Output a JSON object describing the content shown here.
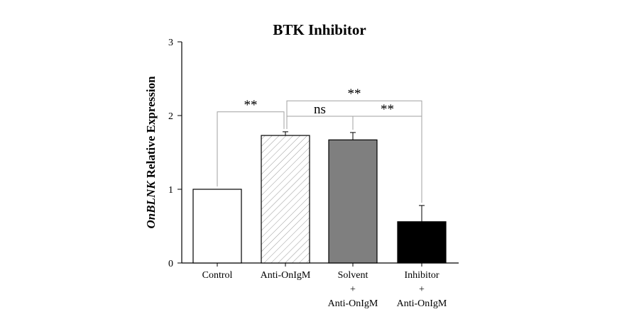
{
  "chart_data": {
    "type": "bar",
    "title": "BTK Inhibitor",
    "ylabel_italic": "OnBLNK",
    "ylabel_rest": " Relative Expression",
    "xlabel": "",
    "ylim": [
      0,
      3
    ],
    "yticks": [
      "0",
      "1",
      "2",
      "3"
    ],
    "grid": false,
    "legend": "none",
    "categories": [
      [
        "Control"
      ],
      [
        "Anti-OnIgM"
      ],
      [
        "Solvent",
        "+",
        "Anti-OnIgM"
      ],
      [
        "Inhibitor",
        "+",
        "Anti-OnIgM"
      ]
    ],
    "values": [
      1.0,
      1.73,
      1.67,
      0.56
    ],
    "errors": [
      0.0,
      0.05,
      0.1,
      0.22
    ],
    "fills": [
      "#ffffff",
      "hatch",
      "#7f7f7f",
      "#000000"
    ],
    "significance": [
      {
        "from": 0,
        "to": 1,
        "label": "**",
        "level": 2.05
      },
      {
        "from": 1,
        "to": 2,
        "label": "ns",
        "level": 1.99
      },
      {
        "from": 1,
        "to": 3,
        "label": "**",
        "level": 2.2
      },
      {
        "from": 2,
        "to": 3,
        "label": "**",
        "level": 1.99
      }
    ]
  }
}
